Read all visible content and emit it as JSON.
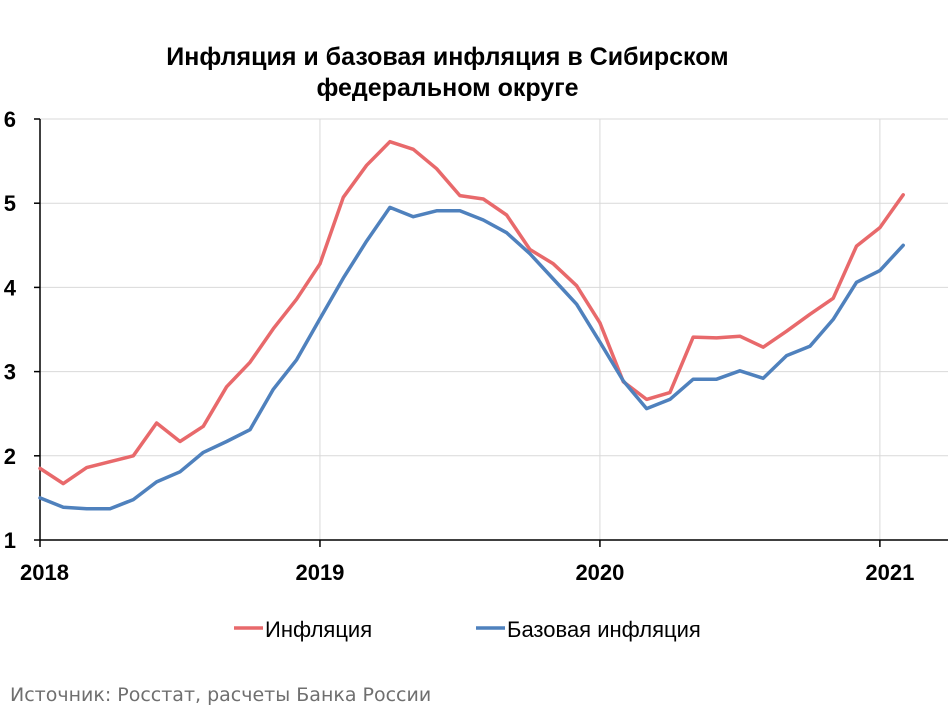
{
  "chart_data": {
    "type": "line",
    "title": "Инфляция и базовая инфляция в Сибирском федеральном округе",
    "title_lines": [
      "Инфляция и базовая инфляция в Сибирском",
      "федеральном округе"
    ],
    "xlabel": "",
    "ylabel": "",
    "ylim": [
      1,
      6
    ],
    "yticks": [
      "1",
      "2",
      "3",
      "4",
      "5",
      "6"
    ],
    "xticks": [
      "2018",
      "2019",
      "2020",
      "2021"
    ],
    "xlim": [
      "2018-01",
      "2021-04"
    ],
    "grid": true,
    "legend_position": "bottom",
    "x": [
      "2018-01",
      "2018-02",
      "2018-03",
      "2018-04",
      "2018-05",
      "2018-06",
      "2018-07",
      "2018-08",
      "2018-09",
      "2018-10",
      "2018-11",
      "2018-12",
      "2019-01",
      "2019-02",
      "2019-03",
      "2019-04",
      "2019-05",
      "2019-06",
      "2019-07",
      "2019-08",
      "2019-09",
      "2019-10",
      "2019-11",
      "2019-12",
      "2020-01",
      "2020-02",
      "2020-03",
      "2020-04",
      "2020-05",
      "2020-06",
      "2020-07",
      "2020-08",
      "2020-09",
      "2020-10",
      "2020-11",
      "2020-12",
      "2021-01",
      "2021-02"
    ],
    "series": [
      {
        "name": "Инфляция",
        "color": "#e8696b",
        "values": [
          1.85,
          1.67,
          1.86,
          1.93,
          2.0,
          2.39,
          2.17,
          2.35,
          2.82,
          3.11,
          3.51,
          3.86,
          4.28,
          5.07,
          5.45,
          5.73,
          5.64,
          5.41,
          5.09,
          5.05,
          4.86,
          4.45,
          4.28,
          4.02,
          3.58,
          2.88,
          2.67,
          2.75,
          3.41,
          3.4,
          3.42,
          3.29,
          3.48,
          3.68,
          3.87,
          4.49,
          4.71,
          5.1
        ]
      },
      {
        "name": "Базовая инфляция",
        "color": "#4f81bd",
        "values": [
          1.5,
          1.39,
          1.37,
          1.37,
          1.48,
          1.69,
          1.81,
          2.04,
          2.17,
          2.31,
          2.79,
          3.14,
          3.63,
          4.11,
          4.55,
          4.95,
          4.84,
          4.91,
          4.91,
          4.8,
          4.65,
          4.4,
          4.1,
          3.8,
          3.35,
          2.89,
          2.56,
          2.67,
          2.91,
          2.91,
          3.01,
          2.92,
          3.19,
          3.3,
          3.62,
          4.06,
          4.2,
          4.5
        ]
      }
    ]
  },
  "source_note": "Источник: Росстат, расчеты Банка России"
}
